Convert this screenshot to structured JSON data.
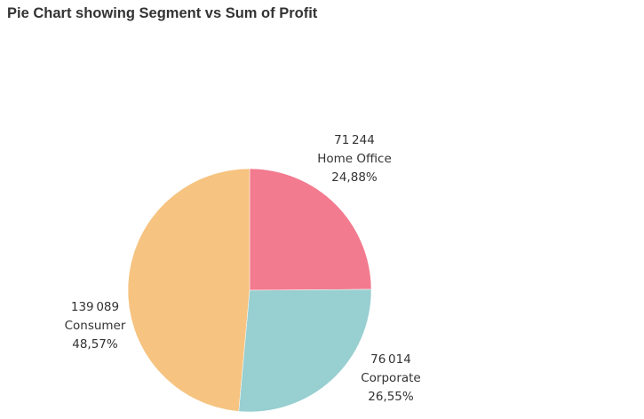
{
  "title": "Pie Chart showing Segment vs Sum of Profit",
  "chart_data": {
    "type": "pie",
    "title": "Pie Chart showing Segment vs Sum of Profit",
    "slices": [
      {
        "label": "Home Office",
        "value": 71244,
        "value_text": "71 244",
        "percent_text": "24,88%",
        "color": "#f27b8f"
      },
      {
        "label": "Corporate",
        "value": 76014,
        "value_text": "76 014",
        "percent_text": "26,55%",
        "color": "#98cfd1"
      },
      {
        "label": "Consumer",
        "value": 139089,
        "value_text": "139 089",
        "percent_text": "48,57%",
        "color": "#f6c380"
      }
    ],
    "start_angle": "12 o'clock",
    "direction": "clockwise",
    "legend": "none"
  }
}
